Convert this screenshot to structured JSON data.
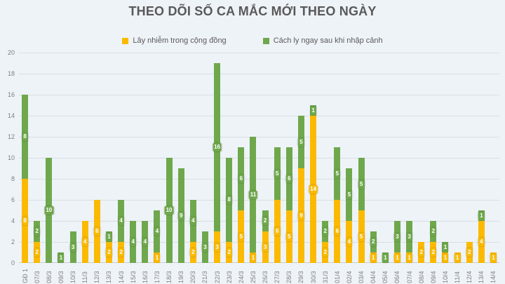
{
  "title": "THEO DÕI SỐ CA MẮC MỚI THEO NGÀY",
  "legend": [
    {
      "label": "Lây nhiễm trong cộng đồng",
      "color": "#fbba00"
    },
    {
      "label": "Cách ly ngay sau khi nhập cảnh",
      "color": "#6fa84c"
    }
  ],
  "colors": {
    "background": "#eef3f8",
    "title_text": "#595959",
    "axis_text": "#7f7f7f",
    "gridline": "#d9dee4",
    "community_yellow": "#fbba00",
    "quarantine_green": "#6fa84c"
  },
  "chart_data": {
    "type": "bar",
    "stacked": true,
    "title": "THEO DÕI SỐ CA MẮC MỚI THEO NGÀY",
    "xlabel": "",
    "ylabel": "",
    "ylim": [
      0,
      20
    ],
    "ytick_step": 2,
    "grid": true,
    "legend_position": "top",
    "data_labels": true,
    "categories": [
      "GĐ 1",
      "07/3",
      "08/3",
      "09/3",
      "10/3",
      "11/3",
      "12/3",
      "13/3",
      "14/3",
      "15/3",
      "16/3",
      "17/3",
      "18/3",
      "19/3",
      "20/3",
      "21/3",
      "22/3",
      "23/3",
      "24/3",
      "25/3",
      "26/3",
      "27/3",
      "28/3",
      "29/3",
      "30/3",
      "31/3",
      "01/4",
      "02/4",
      "03/4",
      "04/4",
      "05/4",
      "06/4",
      "07/4",
      "08/4",
      "09/4",
      "10/4",
      "11/4",
      "12/4",
      "13/4",
      "14/4"
    ],
    "series": [
      {
        "name": "Lây nhiễm trong cộng đồng",
        "color": "#fbba00",
        "values": [
          8,
          2,
          0,
          0,
          0,
          4,
          6,
          2,
          2,
          0,
          0,
          1,
          0,
          0,
          2,
          0,
          3,
          2,
          5,
          1,
          3,
          6,
          5,
          9,
          14,
          2,
          6,
          4,
          5,
          1,
          0,
          1,
          1,
          2,
          2,
          1,
          1,
          2,
          4,
          1
        ]
      },
      {
        "name": "Cách ly ngay sau khi nhập cảnh",
        "color": "#6fa84c",
        "values": [
          8,
          2,
          10,
          1,
          3,
          0,
          0,
          1,
          4,
          4,
          4,
          4,
          10,
          9,
          4,
          3,
          16,
          8,
          6,
          11,
          2,
          5,
          6,
          5,
          1,
          2,
          5,
          5,
          5,
          2,
          1,
          3,
          3,
          0,
          2,
          1,
          0,
          0,
          1,
          0
        ]
      }
    ]
  }
}
